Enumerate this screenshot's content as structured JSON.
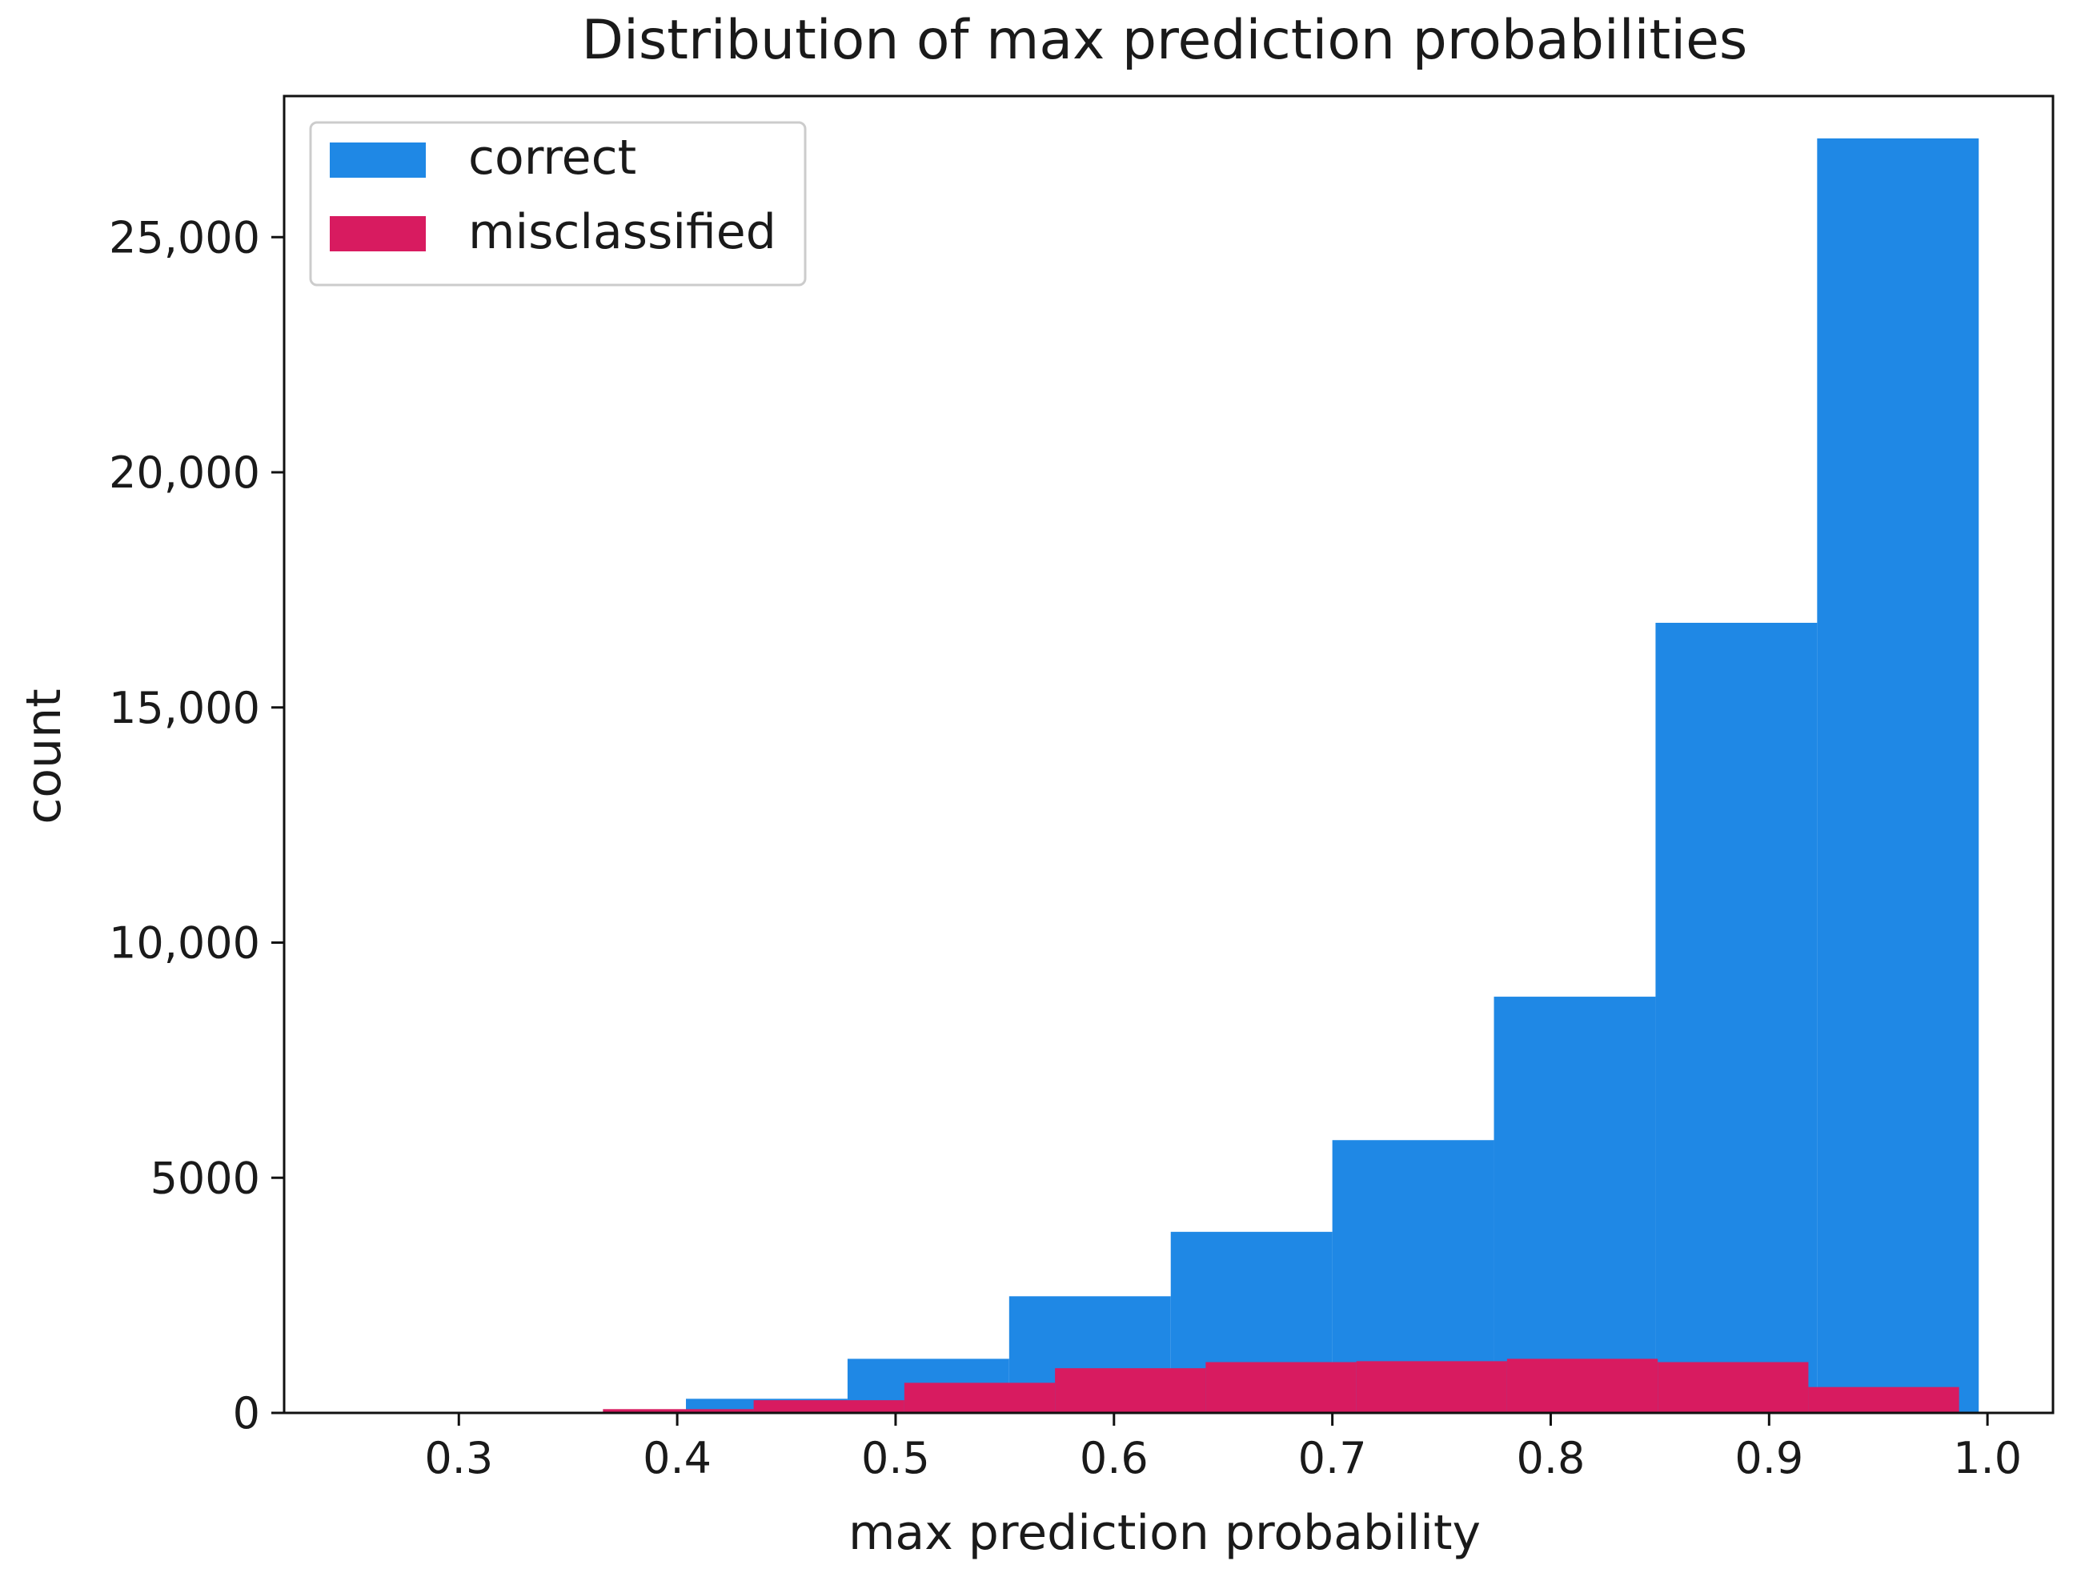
{
  "chart_data": {
    "type": "bar",
    "title": "Distribution of max prediction probabilities",
    "xlabel": "max prediction probability",
    "ylabel": "count",
    "xlim": [
      0.22,
      1.03
    ],
    "ylim": [
      0,
      28000
    ],
    "x_ticks": [
      {
        "value": 0.3,
        "label": "0.3"
      },
      {
        "value": 0.4,
        "label": "0.4"
      },
      {
        "value": 0.5,
        "label": "0.5"
      },
      {
        "value": 0.6,
        "label": "0.6"
      },
      {
        "value": 0.7,
        "label": "0.7"
      },
      {
        "value": 0.8,
        "label": "0.8"
      },
      {
        "value": 0.9,
        "label": "0.9"
      },
      {
        "value": 1.0,
        "label": "1.0"
      }
    ],
    "y_ticks": [
      {
        "value": 0,
        "label": "0"
      },
      {
        "value": 5000,
        "label": "5000"
      },
      {
        "value": 10000,
        "label": "10,000"
      },
      {
        "value": 15000,
        "label": "15,000"
      },
      {
        "value": 20000,
        "label": "20,000"
      },
      {
        "value": 25000,
        "label": "25,000"
      }
    ],
    "grid": false,
    "legend_position": "top-left",
    "series": [
      {
        "name": "correct",
        "color": "#1f88e5",
        "bins": [
          {
            "x0": 0.404,
            "x1": 0.478,
            "value": 300
          },
          {
            "x0": 0.478,
            "x1": 0.552,
            "value": 1150
          },
          {
            "x0": 0.552,
            "x1": 0.626,
            "value": 2480
          },
          {
            "x0": 0.626,
            "x1": 0.7,
            "value": 3850
          },
          {
            "x0": 0.7,
            "x1": 0.774,
            "value": 5800
          },
          {
            "x0": 0.774,
            "x1": 0.848,
            "value": 8850
          },
          {
            "x0": 0.848,
            "x1": 0.922,
            "value": 16800
          },
          {
            "x0": 0.922,
            "x1": 0.996,
            "value": 27100
          }
        ]
      },
      {
        "name": "misclassified",
        "color": "#d81b60",
        "bins": [
          {
            "x0": 0.366,
            "x1": 0.435,
            "value": 80
          },
          {
            "x0": 0.435,
            "x1": 0.504,
            "value": 270
          },
          {
            "x0": 0.504,
            "x1": 0.573,
            "value": 640
          },
          {
            "x0": 0.573,
            "x1": 0.642,
            "value": 950
          },
          {
            "x0": 0.642,
            "x1": 0.711,
            "value": 1080
          },
          {
            "x0": 0.711,
            "x1": 0.78,
            "value": 1100
          },
          {
            "x0": 0.78,
            "x1": 0.849,
            "value": 1150
          },
          {
            "x0": 0.849,
            "x1": 0.918,
            "value": 1080
          },
          {
            "x0": 0.918,
            "x1": 0.987,
            "value": 550
          }
        ]
      }
    ]
  }
}
